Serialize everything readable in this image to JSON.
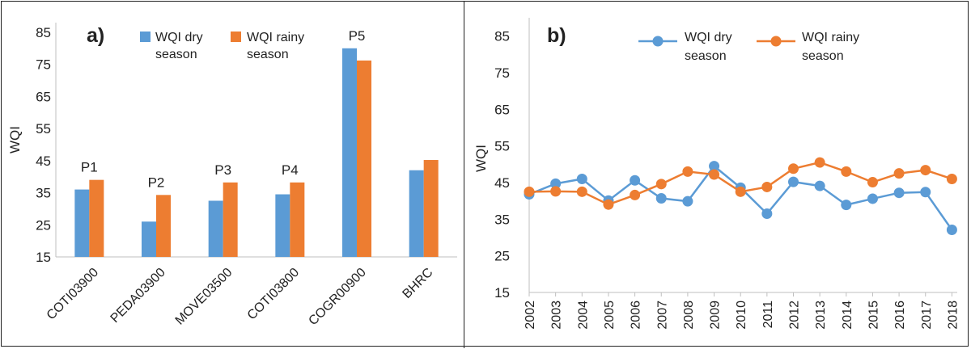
{
  "colors": {
    "dry": "#5b9bd5",
    "rainy": "#ed7d31",
    "axis": "#bfbfbf",
    "text": "#222222"
  },
  "chart_data": [
    {
      "type": "bar",
      "panel_label": "a)",
      "ylabel": "WQI",
      "ylim": [
        15,
        88
      ],
      "yticks": [
        15,
        25,
        35,
        45,
        55,
        65,
        75,
        85
      ],
      "categories": [
        "COTI03900",
        "PEDA03900",
        "MOVE03500",
        "COTI03800",
        "COGR00900",
        "BHRC"
      ],
      "point_labels": [
        "P1",
        "P2",
        "P3",
        "P4",
        "P5",
        ""
      ],
      "series": [
        {
          "name": "WQI dry season",
          "values": [
            36,
            26,
            32.5,
            34.5,
            80,
            42
          ]
        },
        {
          "name": "WQI rainy season",
          "values": [
            39,
            34.3,
            38.2,
            38.2,
            76.2,
            45.2
          ]
        }
      ],
      "legend": {
        "position": "top",
        "items": [
          {
            "line1": "WQI dry",
            "line2": "season"
          },
          {
            "line1": "WQI rainy",
            "line2": "season"
          }
        ]
      },
      "grid": false
    },
    {
      "type": "line",
      "panel_label": "b)",
      "ylabel": "WQI",
      "ylim": [
        15,
        90
      ],
      "yticks": [
        15,
        25,
        35,
        45,
        55,
        65,
        75,
        85
      ],
      "x": [
        "2002",
        "2003",
        "2004",
        "2005",
        "2006",
        "2007",
        "2008",
        "2009",
        "2010",
        "2011",
        "2012",
        "2013",
        "2014",
        "2015",
        "2016",
        "2017",
        "2018"
      ],
      "series": [
        {
          "name": "WQI dry season",
          "values": [
            41.8,
            44.7,
            46,
            40.1,
            45.6,
            40.7,
            39.9,
            49.5,
            43.6,
            36.5,
            45.2,
            44.1,
            38.9,
            40.6,
            42.2,
            42.4,
            32.1
          ]
        },
        {
          "name": "WQI rainy season",
          "values": [
            42.5,
            42.6,
            42.5,
            39.0,
            41.6,
            44.6,
            48.0,
            47.2,
            42.5,
            43.8,
            48.8,
            50.5,
            48.0,
            45.1,
            47.5,
            48.4,
            46.0
          ]
        }
      ],
      "legend": {
        "position": "top",
        "items": [
          {
            "line1": "WQI dry",
            "line2": "season"
          },
          {
            "line1": "WQI rainy",
            "line2": "season"
          }
        ]
      },
      "grid": false
    }
  ]
}
